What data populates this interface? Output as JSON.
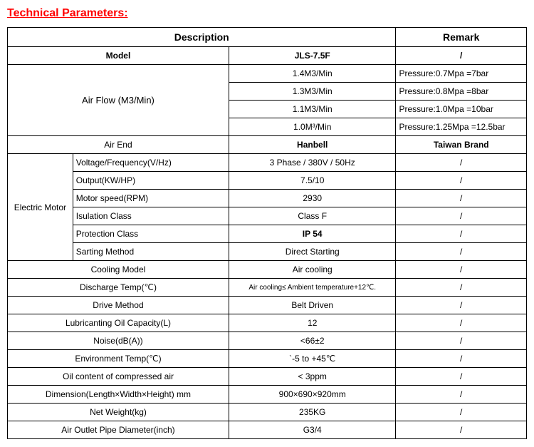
{
  "title": "Technical Parameters:",
  "header": {
    "description": "Description",
    "remark": "Remark"
  },
  "model": {
    "label": "Model",
    "value": "JLS-7.5F",
    "remark": "/"
  },
  "airflow": {
    "label": "Air Flow (M3/Min)",
    "rows": [
      {
        "value": "1.4M3/Min",
        "remark": "Pressure:0.7Mpa =7bar"
      },
      {
        "value": "1.3M3/Min",
        "remark": "Pressure:0.8Mpa =8bar"
      },
      {
        "value": "1.1M3/Min",
        "remark": "Pressure:1.0Mpa =10bar"
      },
      {
        "value": "1.0M³/Min",
        "remark": "Pressure:1.25Mpa =12.5bar"
      }
    ]
  },
  "airend": {
    "label": "Air End",
    "value": "Hanbell",
    "remark": "Taiwan Brand"
  },
  "motor": {
    "group": "Electric  Motor",
    "rows": [
      {
        "label": "Voltage/Frequency(V/Hz)",
        "value": "3 Phase / 380V / 50Hz",
        "remark": "/"
      },
      {
        "label": "Output(KW/HP)",
        "value": "7.5/10",
        "remark": "/"
      },
      {
        "label": "Motor speed(RPM)",
        "value": "2930",
        "remark": "/"
      },
      {
        "label": "Isulation Class",
        "value": "Class F",
        "remark": "/"
      },
      {
        "label": "Protection Class",
        "value": "IP 54",
        "remark": "/",
        "bold": true
      },
      {
        "label": "Sarting Method",
        "value": "Direct Starting",
        "remark": "/"
      }
    ]
  },
  "params": [
    {
      "label": "Cooling Model",
      "value": "Air cooling",
      "remark": "/"
    },
    {
      "label": "Discharge Temp(℃)",
      "value": "Air cooling≤ Ambient temperature+12℃.",
      "remark": "/",
      "small": true
    },
    {
      "label": "Drive Method",
      "value": "Belt Driven",
      "remark": "/"
    },
    {
      "label": "Lubricanting Oil Capacity(L)",
      "value": "12",
      "remark": "/"
    },
    {
      "label": "Noise(dB(A))",
      "value": "<66±2",
      "remark": "/"
    },
    {
      "label": "Environment Temp(℃)",
      "value": "`-5 to +45℃",
      "remark": "/"
    },
    {
      "label": "Oil content of compressed air",
      "value": "< 3ppm",
      "remark": "/"
    },
    {
      "label": "Dimension(Length×Width×Height) mm",
      "value": "900×690×920mm",
      "remark": "/"
    },
    {
      "label": "Net Weight(kg)",
      "value": "235KG",
      "remark": "/"
    },
    {
      "label": "Air Outlet Pipe Diameter(inch)",
      "value": "G3/4",
      "remark": "/"
    }
  ]
}
